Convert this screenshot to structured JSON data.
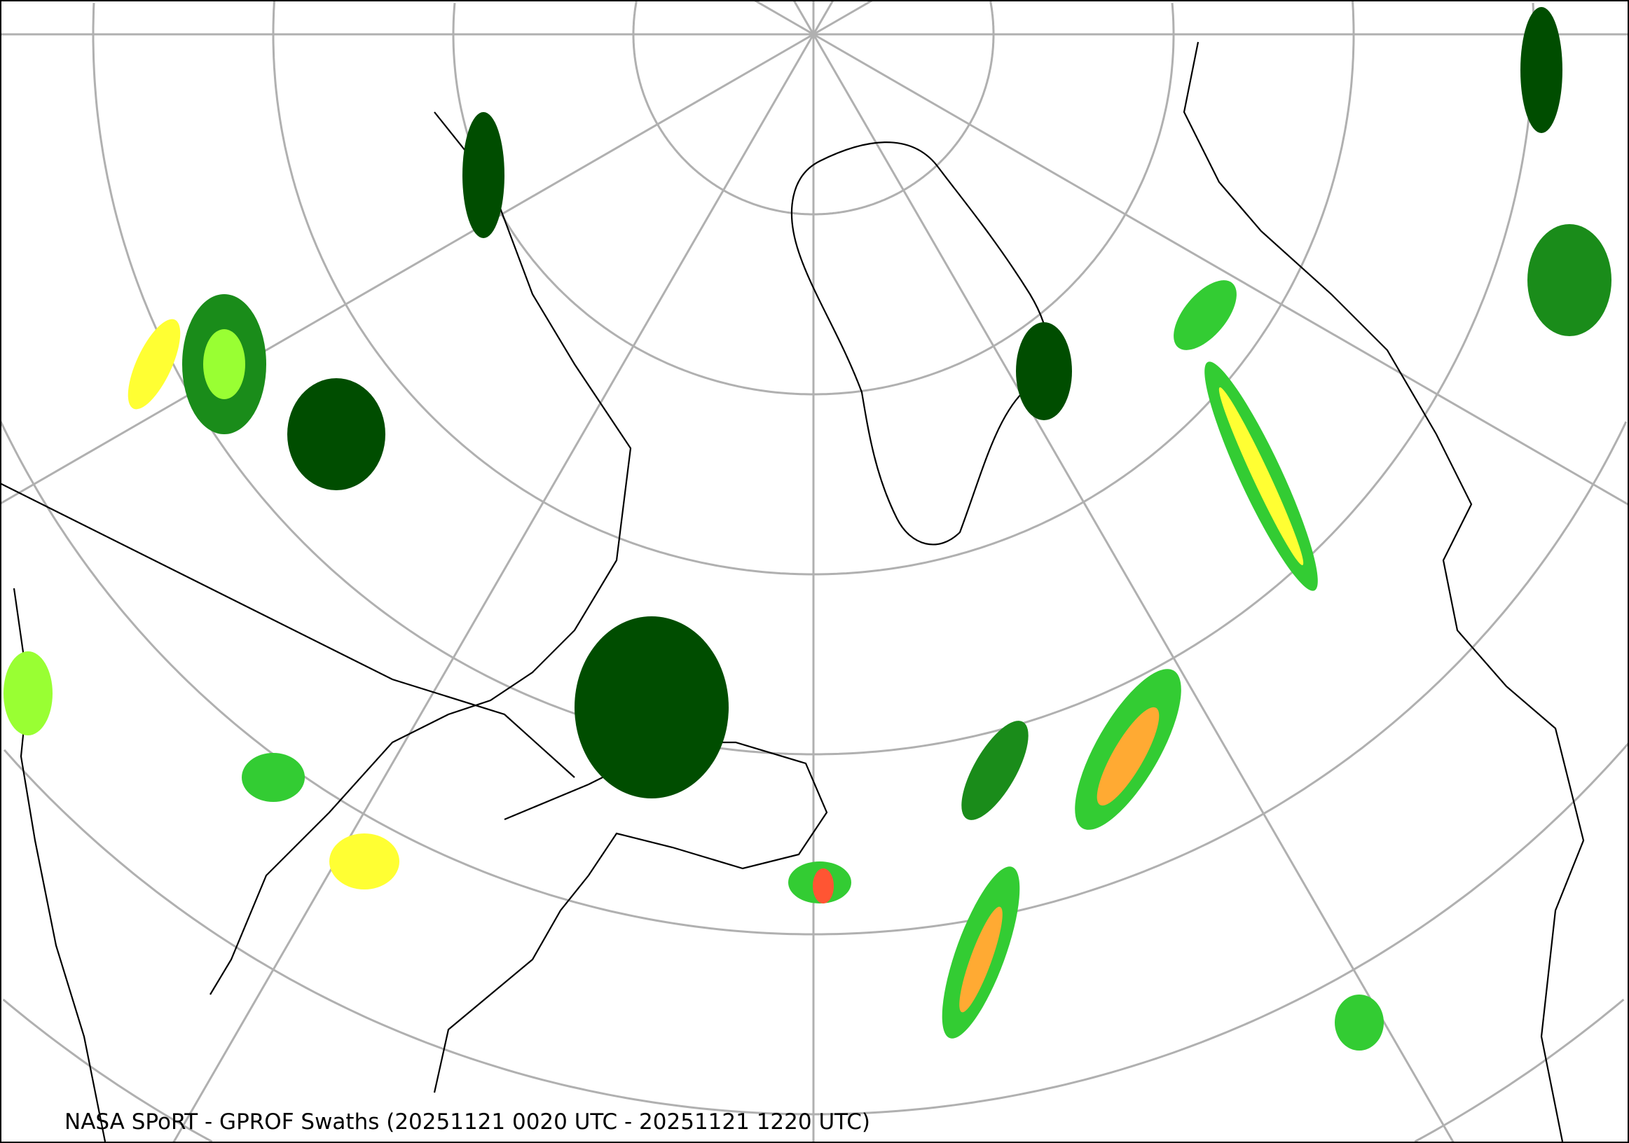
{
  "map": {
    "caption": "NASA SPoRT - GPROF Swaths (20251121 0020 UTC - 20251121 1220 UTC)",
    "projection": "north-polar-stereographic",
    "graticule_color": "#b0b0b0",
    "coastline_color": "#000000",
    "precip_colors": [
      "#004d00",
      "#1a8c1a",
      "#33cc33",
      "#99ff33",
      "#ffff33",
      "#ffaa33",
      "#ff5533"
    ]
  }
}
